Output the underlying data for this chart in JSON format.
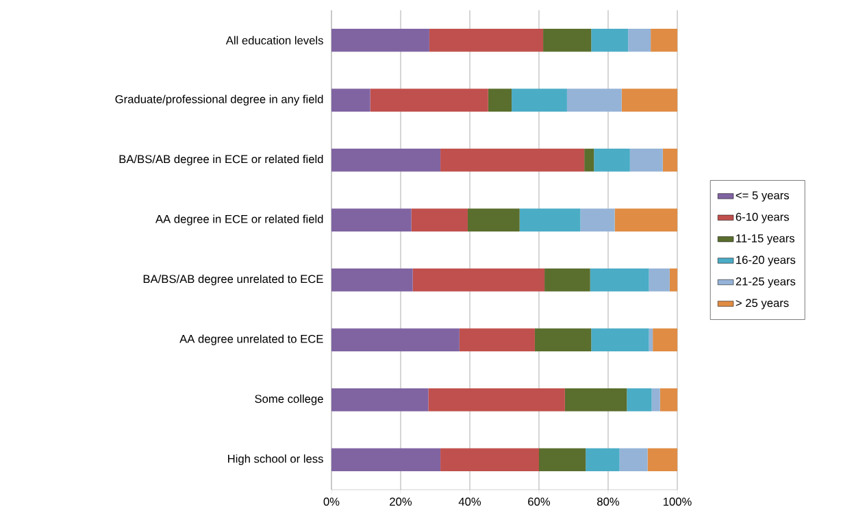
{
  "chart_data": {
    "type": "bar",
    "orientation": "horizontal",
    "stacked": true,
    "categories": [
      "All education levels",
      "Graduate/professional degree in any field",
      "BA/BS/AB degree in ECE or related field",
      "AA degree in ECE or related field",
      "BA/BS/AB degree unrelated to ECE",
      "AA degree unrelated to ECE",
      "Some college",
      "High school or less"
    ],
    "series": [
      {
        "name": "<= 5 years",
        "color": "#8064a2",
        "values": [
          28.3,
          11.2,
          31.5,
          23.1,
          23.5,
          37.0,
          28.0,
          31.5
        ]
      },
      {
        "name": "6-10 years",
        "color": "#c0504d",
        "values": [
          32.9,
          34.1,
          41.6,
          16.3,
          38.1,
          21.8,
          39.5,
          28.5
        ]
      },
      {
        "name": "11-15 years",
        "color": "#5a6e2e",
        "values": [
          13.9,
          6.8,
          2.8,
          15.0,
          13.2,
          16.3,
          17.9,
          13.5
        ]
      },
      {
        "name": "16-20 years",
        "color": "#4bacc6",
        "values": [
          10.7,
          16.0,
          10.4,
          17.6,
          17.0,
          16.7,
          7.2,
          9.8
        ]
      },
      {
        "name": "21-25 years",
        "color": "#95b3d7",
        "values": [
          6.5,
          15.8,
          9.5,
          9.9,
          6.0,
          1.1,
          2.4,
          8.1
        ]
      },
      {
        "name": "> 25 years",
        "color": "#e08c44",
        "values": [
          7.7,
          16.1,
          4.2,
          18.1,
          2.2,
          7.1,
          5.0,
          8.6
        ]
      }
    ],
    "xlim": [
      0,
      100
    ],
    "xticks": [
      {
        "value": 0,
        "label": "0%"
      },
      {
        "value": 20,
        "label": "20%"
      },
      {
        "value": 40,
        "label": "40%"
      },
      {
        "value": 60,
        "label": "60%"
      },
      {
        "value": 80,
        "label": "80%"
      },
      {
        "value": 100,
        "label": "100%"
      }
    ],
    "grid": "x",
    "legend": "right"
  }
}
